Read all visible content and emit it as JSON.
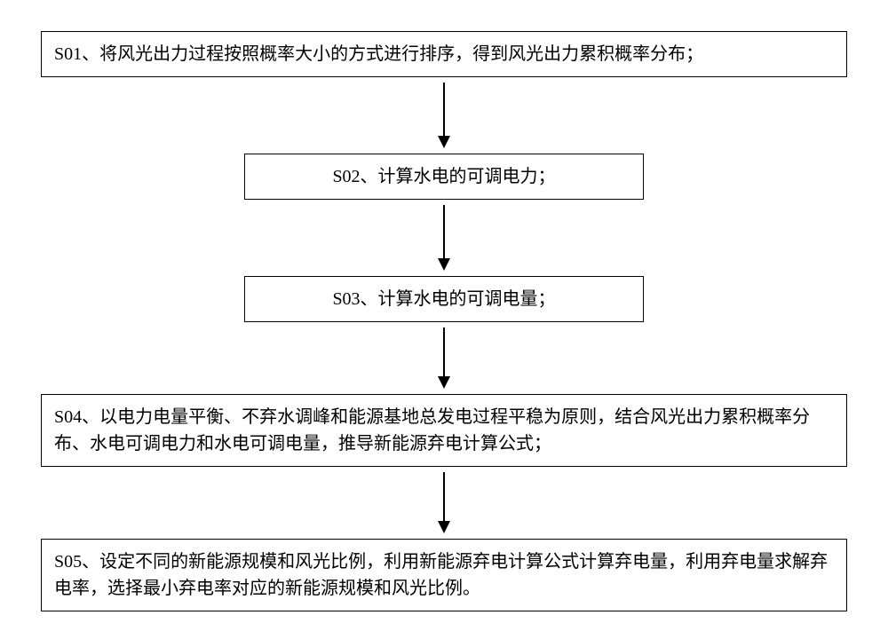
{
  "flowchart": {
    "type": "flowchart",
    "background_color": "#ffffff",
    "box_border_color": "#000000",
    "box_border_width": 1.5,
    "text_color": "#000000",
    "font_size": 20,
    "font_family": "SimSun",
    "arrow_color": "#000000",
    "box_width_wide": 908,
    "box_width_narrow": 450,
    "steps": [
      {
        "id": "S01",
        "text": "S01、将风光出力过程按照概率大小的方式进行排序，得到风光出力累积概率分布；",
        "width_type": "wide",
        "lines": 1
      },
      {
        "id": "S02",
        "text": "S02、计算水电的可调电力；",
        "width_type": "narrow",
        "lines": 1
      },
      {
        "id": "S03",
        "text": "S03、计算水电的可调电量；",
        "width_type": "narrow",
        "lines": 1
      },
      {
        "id": "S04",
        "text": "S04、以电力电量平衡、不弃水调峰和能源基地总发电过程平稳为原则，结合风光出力累积概率分布、水电可调电力和水电可调电量，推导新能源弃电计算公式；",
        "width_type": "wide",
        "lines": 2
      },
      {
        "id": "S05",
        "text": "S05、设定不同的新能源规模和风光比例，利用新能源弃电计算公式计算弃电量，利用弃电量求解弃电率，选择最小弃电率对应的新能源规模和风光比例。",
        "width_type": "wide",
        "lines": 2
      }
    ],
    "arrows": [
      {
        "after_step": 0,
        "line_height": 60
      },
      {
        "after_step": 1,
        "line_height": 60
      },
      {
        "after_step": 2,
        "line_height": 55
      },
      {
        "after_step": 3,
        "line_height": 55
      }
    ]
  }
}
